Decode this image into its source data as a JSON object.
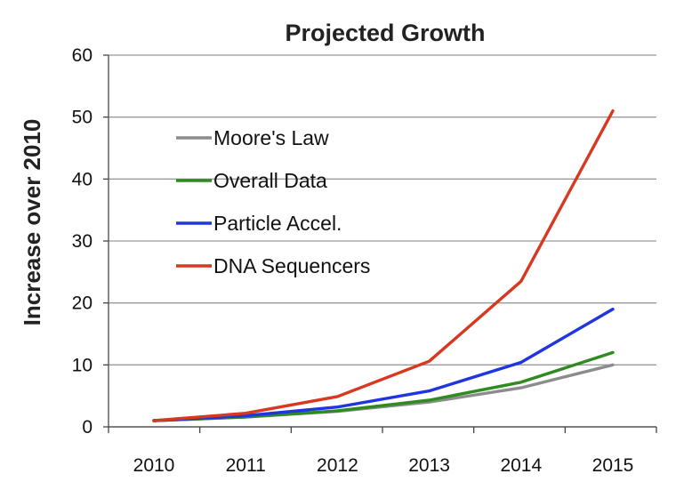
{
  "chart_data": {
    "type": "line",
    "title": "Projected Growth",
    "xlabel": "",
    "ylabel": "Increase over 2010",
    "categories": [
      "2010",
      "2011",
      "2012",
      "2013",
      "2014",
      "2015"
    ],
    "ylim": [
      0,
      60
    ],
    "yticks": [
      0,
      10,
      20,
      30,
      40,
      50,
      60
    ],
    "grid": true,
    "legend_position": "upper-left",
    "series": [
      {
        "name": "Moore's Law",
        "color": "#8c8c8c",
        "values": [
          1,
          1.6,
          2.5,
          4,
          6.3,
          10
        ]
      },
      {
        "name": "Overall Data",
        "color": "#2e8b1f",
        "values": [
          1,
          1.6,
          2.6,
          4.3,
          7.2,
          12
        ]
      },
      {
        "name": "Particle Accel.",
        "color": "#1f35e0",
        "values": [
          1,
          1.8,
          3.2,
          5.8,
          10.4,
          19
        ]
      },
      {
        "name": "DNA Sequencers",
        "color": "#d7381f",
        "values": [
          1,
          2.2,
          4.9,
          10.6,
          23.5,
          51
        ]
      }
    ]
  }
}
